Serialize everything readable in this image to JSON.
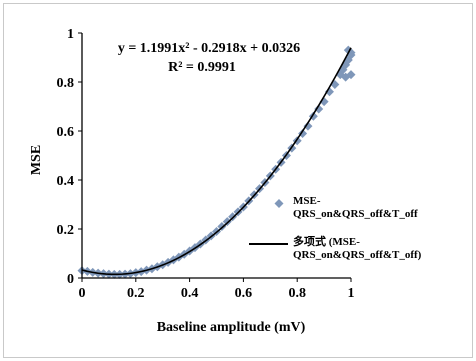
{
  "chart_data": {
    "type": "scatter",
    "xlabel": "Baseline amplitude (mV)",
    "ylabel": "MSE",
    "xlim": [
      0,
      1
    ],
    "ylim": [
      0,
      1
    ],
    "x_ticks": [
      "0",
      "0.2",
      "0.4",
      "0.6",
      "0.8",
      "1"
    ],
    "y_ticks": [
      "0",
      "0.2",
      "0.4",
      "0.6",
      "0.8",
      "1"
    ],
    "grid": false,
    "legend_position": "bottom-right",
    "trendline": {
      "type": "polynomial",
      "degree": 2,
      "coefficients": [
        1.1991,
        -0.2918,
        0.0326
      ],
      "equation_text": "y = 1.1991x² - 0.2918x + 0.0326",
      "r2_text": "R² = 0.9991",
      "legend_label": "多项式 (MSE-QRS_on&QRS_off&T_off)"
    },
    "series": [
      {
        "name": "MSE-QRS_on&QRS_off&T_off",
        "marker": "diamond",
        "x": [
          0.0,
          0.02,
          0.04,
          0.06,
          0.08,
          0.1,
          0.12,
          0.14,
          0.16,
          0.18,
          0.2,
          0.22,
          0.24,
          0.26,
          0.28,
          0.3,
          0.32,
          0.34,
          0.36,
          0.38,
          0.4,
          0.42,
          0.44,
          0.46,
          0.48,
          0.5,
          0.52,
          0.54,
          0.56,
          0.58,
          0.6,
          0.62,
          0.64,
          0.66,
          0.68,
          0.7,
          0.72,
          0.74,
          0.76,
          0.78,
          0.8,
          0.82,
          0.84,
          0.86,
          0.88,
          0.9,
          0.92,
          0.94,
          0.96,
          0.97,
          0.98,
          0.99,
          1.0,
          0.99,
          1.0,
          0.98,
          1.0
        ],
        "y": [
          0.03,
          0.027,
          0.023,
          0.02,
          0.018,
          0.016,
          0.015,
          0.015,
          0.016,
          0.018,
          0.022,
          0.026,
          0.032,
          0.038,
          0.046,
          0.054,
          0.064,
          0.074,
          0.085,
          0.097,
          0.11,
          0.124,
          0.139,
          0.155,
          0.172,
          0.19,
          0.21,
          0.23,
          0.25,
          0.27,
          0.29,
          0.315,
          0.34,
          0.365,
          0.39,
          0.417,
          0.444,
          0.472,
          0.5,
          0.53,
          0.56,
          0.59,
          0.62,
          0.66,
          0.69,
          0.72,
          0.76,
          0.79,
          0.83,
          0.85,
          0.87,
          0.89,
          0.91,
          0.93,
          0.92,
          0.82,
          0.83
        ]
      }
    ]
  }
}
